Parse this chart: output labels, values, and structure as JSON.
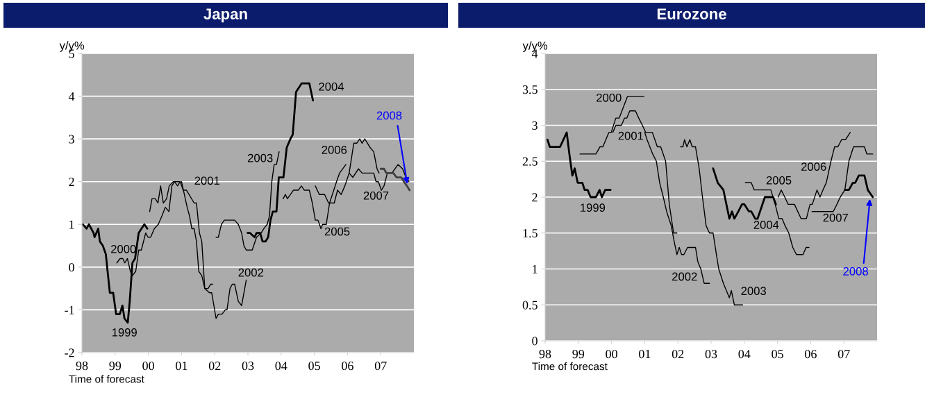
{
  "chart_data": [
    {
      "type": "line",
      "title": "Japan",
      "ylabel": "y/y%",
      "xlabel": "Time of forecast",
      "xlim": [
        1998,
        2008
      ],
      "ylim": [
        -2,
        5
      ],
      "xticks": [
        {
          "value": 1998,
          "label": "98"
        },
        {
          "value": 1999,
          "label": "99"
        },
        {
          "value": 2000,
          "label": "00"
        },
        {
          "value": 2001,
          "label": "01"
        },
        {
          "value": 2002,
          "label": "02"
        },
        {
          "value": 2003,
          "label": "03"
        },
        {
          "value": 2004,
          "label": "04"
        },
        {
          "value": 2005,
          "label": "05"
        },
        {
          "value": 2006,
          "label": "06"
        },
        {
          "value": 2007,
          "label": "07"
        }
      ],
      "yticks": [
        -2,
        -1,
        0,
        1,
        2,
        3,
        4,
        5
      ],
      "grid": "y",
      "marker": "none",
      "line_style": "solid",
      "series": [
        {
          "name": "1999",
          "color": "#000000",
          "x": [
            1998.03,
            1998.14,
            1998.21,
            1998.35,
            1998.38,
            1998.49,
            1998.54,
            1998.63,
            1998.72,
            1998.84,
            1998.94,
            1999.03,
            1999.14,
            1999.22,
            1999.28,
            1999.38,
            1999.44,
            1999.52,
            1999.6,
            1999.71,
            1999.88,
            1999.97
          ],
          "values": [
            1.0,
            0.9,
            1.0,
            0.8,
            0.7,
            0.9,
            0.6,
            0.5,
            0.3,
            -0.6,
            -0.6,
            -1.1,
            -1.1,
            -0.9,
            -1.2,
            -1.3,
            -0.8,
            0.1,
            0.2,
            0.8,
            1.0,
            0.9
          ]
        },
        {
          "name": "2000",
          "color": "#000000",
          "x": [
            1999.05,
            1999.15,
            1999.23,
            1999.29,
            1999.37,
            1999.46,
            1999.52,
            1999.62,
            1999.71,
            1999.79,
            1999.92,
            1999.99,
            2000.07,
            2000.18,
            2000.3,
            2000.41,
            2000.51,
            2000.62,
            2000.71,
            2000.79,
            2000.88,
            2000.96
          ],
          "values": [
            0.1,
            0.2,
            0.2,
            0.1,
            0.2,
            -0.1,
            -0.2,
            -0.1,
            0.4,
            0.4,
            0.8,
            0.7,
            0.7,
            0.9,
            1.0,
            1.2,
            1.4,
            1.3,
            1.9,
            2.0,
            1.9,
            2.0
          ]
        },
        {
          "name": "2001",
          "color": "#000000",
          "x": [
            2000.04,
            2000.11,
            2000.21,
            2000.29,
            2000.37,
            2000.45,
            2000.55,
            2000.63,
            2000.75,
            2000.96,
            2001.05,
            2001.15,
            2001.38,
            2001.45,
            2001.54,
            2001.61,
            2001.7,
            2001.8,
            2001.88,
            2001.94
          ],
          "values": [
            1.3,
            1.6,
            1.6,
            1.5,
            1.9,
            1.5,
            1.6,
            1.9,
            2.0,
            2.0,
            1.8,
            1.8,
            1.5,
            1.5,
            0.8,
            0.6,
            -0.5,
            -0.5,
            -0.4,
            -0.4
          ]
        },
        {
          "name": "2002",
          "color": "#000000",
          "x": [
            2001.0,
            2001.17,
            2001.24,
            2001.31,
            2001.38,
            2001.45,
            2001.52,
            2001.61,
            2001.7,
            2001.84,
            2001.91,
            2002.04,
            2002.11,
            2002.22,
            2002.32,
            2002.37,
            2002.46,
            2002.53,
            2002.6,
            2002.71,
            2002.81,
            2002.95
          ],
          "values": [
            2.0,
            1.4,
            1.2,
            0.9,
            0.9,
            0.6,
            -0.1,
            -0.2,
            -0.5,
            -0.6,
            -0.6,
            -1.2,
            -1.1,
            -1.1,
            -1.0,
            -1.0,
            -0.5,
            -0.4,
            -0.4,
            -0.8,
            -0.9,
            -0.3
          ]
        },
        {
          "name": "2003",
          "color": "#000000",
          "x": [
            2002.04,
            2002.11,
            2002.2,
            2002.29,
            2002.6,
            2002.71,
            2002.81,
            2002.88,
            2002.95,
            2003.13,
            2003.26,
            2003.4,
            2003.48,
            2003.58,
            2003.65,
            2003.72,
            2003.79,
            2003.86,
            2003.94
          ],
          "values": [
            0.7,
            0.7,
            1.0,
            1.1,
            1.1,
            1.0,
            0.8,
            0.5,
            0.4,
            0.4,
            0.7,
            0.8,
            0.9,
            1.0,
            1.2,
            2.0,
            2.4,
            2.4,
            2.7
          ]
        },
        {
          "name": "2004",
          "color": "#000000",
          "x": [
            2002.99,
            2003.06,
            2003.2,
            2003.26,
            2003.37,
            2003.44,
            2003.53,
            2003.61,
            2003.68,
            2003.75,
            2003.86,
            2003.93,
            2004.07,
            2004.17,
            2004.28,
            2004.35,
            2004.45,
            2004.62,
            2004.85,
            2004.96
          ],
          "values": [
            0.8,
            0.8,
            0.7,
            0.8,
            0.8,
            0.6,
            0.6,
            0.7,
            1.1,
            1.3,
            1.3,
            2.1,
            2.1,
            2.8,
            3.0,
            3.1,
            4.1,
            4.3,
            4.3,
            3.9
          ]
        },
        {
          "name": "2005",
          "color": "#000000",
          "x": [
            2004.06,
            2004.13,
            2004.19,
            2004.37,
            2004.52,
            2004.61,
            2004.7,
            2004.85,
            2004.94,
            2005.03,
            2005.11,
            2005.2,
            2005.25,
            2005.36,
            2005.46,
            2005.67,
            2005.76,
            2005.95
          ],
          "values": [
            1.6,
            1.7,
            1.6,
            1.8,
            1.8,
            1.9,
            1.8,
            1.8,
            1.5,
            1.1,
            1.1,
            0.9,
            1.0,
            1.0,
            1.5,
            2.0,
            2.2,
            2.4
          ]
        },
        {
          "name": "2006",
          "color": "#000000",
          "x": [
            2005.03,
            2005.15,
            2005.2,
            2005.31,
            2005.43,
            2005.6,
            2005.7,
            2005.81,
            2005.92,
            2006.05,
            2006.19,
            2006.28,
            2006.37,
            2006.44,
            2006.52,
            2006.68,
            2006.79,
            2006.89,
            2006.95
          ],
          "values": [
            1.9,
            1.7,
            1.7,
            1.7,
            1.5,
            1.5,
            1.8,
            1.7,
            1.9,
            2.2,
            2.9,
            2.9,
            3.0,
            2.9,
            3.0,
            2.8,
            2.7,
            2.3,
            2.2
          ]
        },
        {
          "name": "2007",
          "color": "#000000",
          "x": [
            2006.05,
            2006.16,
            2006.33,
            2006.44,
            2006.79,
            2006.86,
            2006.93,
            2007.02,
            2007.1,
            2007.2,
            2007.34,
            2007.52,
            2007.66,
            2007.76,
            2007.85
          ],
          "values": [
            2.2,
            2.1,
            2.3,
            2.2,
            2.2,
            2.0,
            2.0,
            1.8,
            1.9,
            2.2,
            2.2,
            2.4,
            2.3,
            2.1,
            2.0
          ]
        },
        {
          "color": "#404040",
          "x": [
            2007.0,
            2007.1,
            2007.17,
            2007.38,
            2007.48,
            2007.62,
            2007.7,
            2007.79,
            2007.87
          ],
          "values": [
            2.3,
            2.3,
            2.2,
            2.2,
            2.1,
            2.1,
            2.0,
            1.9,
            1.8
          ]
        }
      ],
      "annotations": [
        {
          "text": "2008",
          "x": 2007.81,
          "y": 1.9
        }
      ]
    },
    {
      "type": "line",
      "title": "Eurozone",
      "ylabel": "y/y%",
      "xlabel": "Time of forecast",
      "xlim": [
        1998,
        2008
      ],
      "ylim": [
        0,
        4
      ],
      "xticks": [
        {
          "value": 1998,
          "label": "98"
        },
        {
          "value": 1999,
          "label": "99"
        },
        {
          "value": 2000,
          "label": "00"
        },
        {
          "value": 2001,
          "label": "01"
        },
        {
          "value": 2002,
          "label": "02"
        },
        {
          "value": 2003,
          "label": "03"
        },
        {
          "value": 2004,
          "label": "04"
        },
        {
          "value": 2005,
          "label": "05"
        },
        {
          "value": 2006,
          "label": "06"
        },
        {
          "value": 2007,
          "label": "07"
        }
      ],
      "yticks": [
        0,
        0.5,
        1,
        1.5,
        2,
        2.5,
        3,
        3.5,
        4
      ],
      "grid": "y",
      "marker": "none",
      "line_style": "solid",
      "series": [
        {
          "name": "1999",
          "color": "#000000",
          "x": [
            1998.07,
            1998.14,
            1998.45,
            1998.65,
            1998.73,
            1998.82,
            1998.89,
            1998.98,
            1999.12,
            1999.19,
            1999.28,
            1999.37,
            1999.53,
            1999.64,
            1999.71,
            1999.81,
            1999.97
          ],
          "values": [
            2.8,
            2.7,
            2.7,
            2.9,
            2.6,
            2.3,
            2.4,
            2.2,
            2.2,
            2.1,
            2.1,
            2.0,
            2.0,
            2.1,
            2.0,
            2.1,
            2.1
          ]
        },
        {
          "name": "2000",
          "color": "#000000",
          "x": [
            1999.05,
            1999.53,
            1999.65,
            1999.74,
            1999.92,
            1999.99,
            2000.13,
            2000.23,
            2000.48,
            2000.98
          ],
          "values": [
            2.6,
            2.6,
            2.7,
            2.7,
            2.9,
            2.9,
            3.1,
            3.1,
            3.4,
            3.4
          ]
        },
        {
          "name": "2001",
          "color": "#000000",
          "x": [
            2000.04,
            2000.13,
            2000.3,
            2000.39,
            2000.46,
            2000.55,
            2000.72,
            2000.82,
            2000.93,
            2001.03,
            2001.23,
            2001.38,
            2001.48,
            2001.63,
            2001.74,
            2001.87,
            2001.97
          ],
          "values": [
            2.9,
            3.0,
            3.0,
            3.1,
            3.1,
            3.2,
            3.2,
            3.1,
            3.0,
            2.9,
            2.9,
            2.7,
            2.7,
            2.5,
            1.9,
            1.5,
            1.5
          ]
        },
        {
          "name": "2002",
          "color": "#000000",
          "x": [
            2001.0,
            2001.07,
            2001.24,
            2001.35,
            2001.45,
            2001.56,
            2001.66,
            2001.8,
            2001.88,
            2001.97,
            2002.04,
            2002.11,
            2002.18,
            2002.29,
            2002.53,
            2002.6,
            2002.69,
            2002.79,
            2002.95
          ],
          "values": [
            2.9,
            2.8,
            2.6,
            2.5,
            2.2,
            2.0,
            1.8,
            1.6,
            1.4,
            1.2,
            1.3,
            1.2,
            1.2,
            1.3,
            1.3,
            1.1,
            1.0,
            0.8,
            0.8
          ]
        },
        {
          "name": "2003",
          "color": "#000000",
          "x": [
            2002.08,
            2002.15,
            2002.2,
            2002.27,
            2002.36,
            2002.43,
            2002.53,
            2002.64,
            2002.74,
            2002.85,
            2002.95,
            2003.06,
            2003.16,
            2003.23,
            2003.37,
            2003.55,
            2003.61,
            2003.7,
            2003.95
          ],
          "values": [
            2.7,
            2.7,
            2.8,
            2.7,
            2.8,
            2.7,
            2.7,
            2.4,
            2.0,
            1.6,
            1.5,
            1.5,
            1.2,
            1.0,
            0.8,
            0.6,
            0.7,
            0.5,
            0.5
          ]
        },
        {
          "name": "2004",
          "color": "#000000",
          "x": [
            2003.06,
            2003.2,
            2003.37,
            2003.55,
            2003.63,
            2003.7,
            2003.82,
            2003.93,
            2004.0,
            2004.14,
            2004.21,
            2004.33,
            2004.4,
            2004.62,
            2004.87,
            2004.95
          ],
          "values": [
            2.4,
            2.2,
            2.1,
            1.7,
            1.8,
            1.7,
            1.8,
            1.9,
            1.9,
            1.8,
            1.8,
            1.7,
            1.7,
            2.0,
            2.0,
            1.9
          ]
        },
        {
          "name": "2005",
          "color": "#000000",
          "x": [
            2004.03,
            2004.21,
            2004.3,
            2004.8,
            2004.93,
            2005.04,
            2005.14,
            2005.23,
            2005.34,
            2005.46,
            2005.57,
            2005.77,
            2005.86,
            2005.95
          ],
          "values": [
            2.2,
            2.2,
            2.1,
            2.1,
            1.9,
            1.7,
            1.7,
            1.6,
            1.5,
            1.3,
            1.2,
            1.2,
            1.3,
            1.3
          ]
        },
        {
          "name": "2006",
          "color": "#000000",
          "x": [
            2005.02,
            2005.11,
            2005.22,
            2005.32,
            2005.51,
            2005.71,
            2005.87,
            2005.98,
            2006.05,
            2006.19,
            2006.28,
            2006.37,
            2006.47,
            2006.61,
            2006.72,
            2006.82,
            2006.93,
            2007.05,
            2007.19
          ],
          "values": [
            2.0,
            2.1,
            2.0,
            1.9,
            1.9,
            1.7,
            1.7,
            1.9,
            1.9,
            2.1,
            2.0,
            2.1,
            2.2,
            2.5,
            2.7,
            2.7,
            2.8,
            2.8,
            2.9
          ]
        },
        {
          "name": "2007",
          "color": "#000000",
          "x": [
            2006.04,
            2006.68,
            2006.79,
            2006.89,
            2007.03,
            2007.15,
            2007.29,
            2007.43,
            2007.62,
            2007.69,
            2007.87
          ],
          "values": [
            1.8,
            1.8,
            1.9,
            2.0,
            2.1,
            2.5,
            2.7,
            2.7,
            2.7,
            2.6,
            2.6
          ]
        },
        {
          "color": "#000000",
          "x": [
            2007.03,
            2007.15,
            2007.27,
            2007.34,
            2007.45,
            2007.62,
            2007.72,
            2007.87
          ],
          "values": [
            2.1,
            2.1,
            2.2,
            2.2,
            2.3,
            2.3,
            2.1,
            2.0
          ]
        }
      ],
      "annotations": [
        {
          "text": "2008",
          "x": 2007.79,
          "y": 2.0
        }
      ]
    }
  ]
}
